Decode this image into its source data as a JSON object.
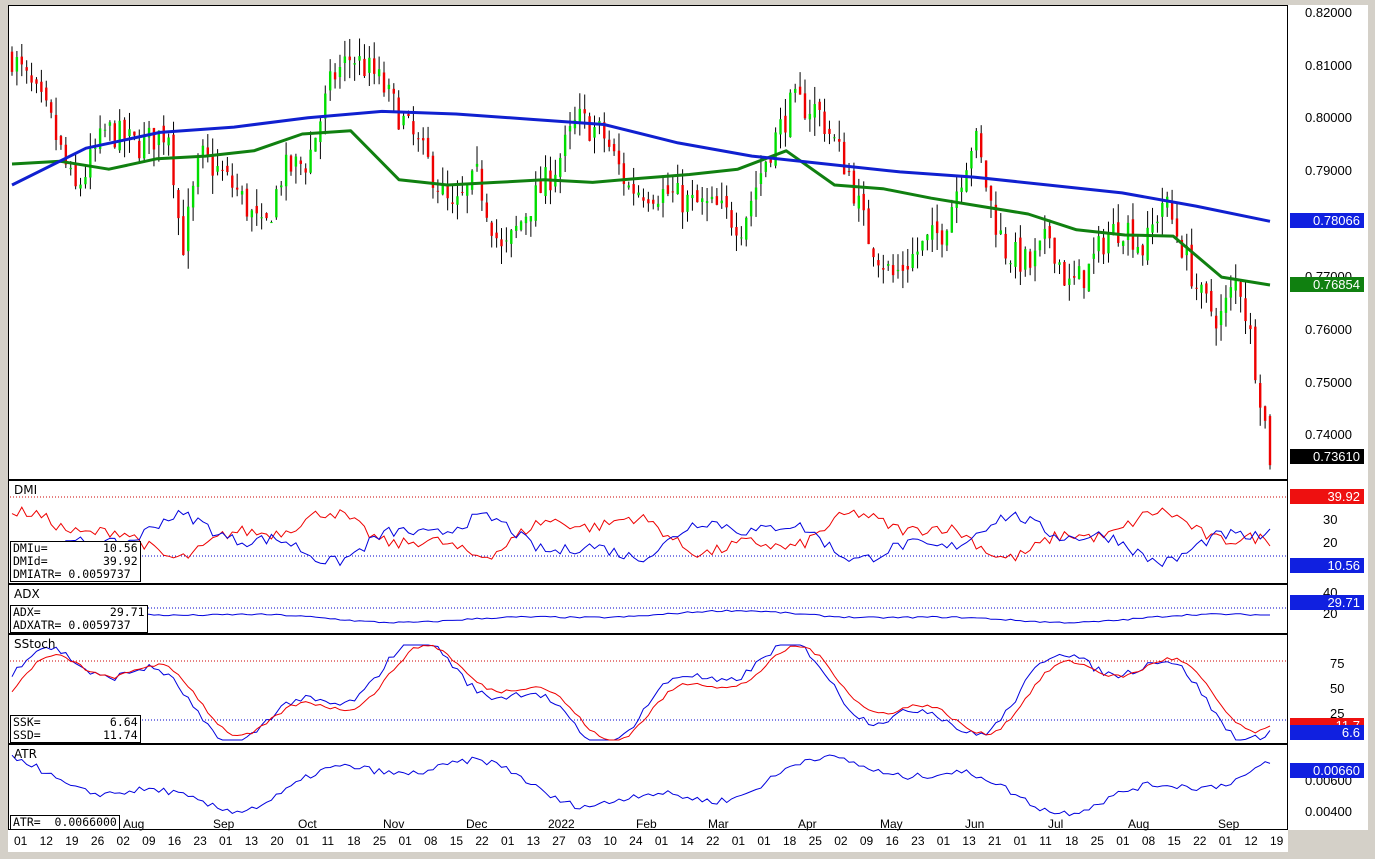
{
  "price_panel": {
    "last_close": "0.73610",
    "ma_green": "0.76854",
    "ma_blue": "0.78066",
    "yticks": [
      "0.82000",
      "0.81000",
      "0.80000",
      "0.79000",
      "0.77000",
      "0.76000",
      "0.75000",
      "0.74000"
    ],
    "colors": {
      "up": "#00dd00",
      "down": "#ee0000",
      "ma_green": "#108010",
      "ma_blue": "#1020d0"
    }
  },
  "dmi_panel": {
    "label": "DMI",
    "info": [
      "DMIu=        10.56",
      "DMId=        39.92",
      "DMIATR= 0.0059737"
    ],
    "badge_red": "39.92",
    "badge_blue": "10.56",
    "yticks": [
      "30",
      "20"
    ]
  },
  "adx_panel": {
    "label": "ADX",
    "info": [
      "ADX=          29.71",
      "ADXATR= 0.0059737"
    ],
    "badge": "29.71",
    "yticks": [
      "40",
      "20"
    ]
  },
  "sstoch_panel": {
    "label": "SStoch",
    "info": [
      "SSK=          6.64",
      "SSD=         11.74"
    ],
    "badge_red": "11.7",
    "badge_blue": "6.6",
    "yticks": [
      "75",
      "50",
      "25"
    ]
  },
  "atr_panel": {
    "label": "ATR",
    "info": [
      "ATR=  0.0066000"
    ],
    "badge": "0.00660",
    "yticks": [
      "0.00600",
      "0.00400"
    ]
  },
  "x_axis": {
    "months": [
      "Aug",
      "Sep",
      "Oct",
      "Nov",
      "Dec",
      "2022",
      "Feb",
      "Mar",
      "Apr",
      "May",
      "Jun",
      "Jul",
      "Aug",
      "Sep"
    ],
    "days": [
      "01",
      "12",
      "19",
      "26",
      "02",
      "09",
      "16",
      "23",
      "01",
      "13",
      "20",
      "01",
      "11",
      "18",
      "25",
      "01",
      "08",
      "15",
      "22",
      "01",
      "13",
      "27",
      "03",
      "10",
      "24",
      "01",
      "14",
      "22",
      "01",
      "01",
      "18",
      "25",
      "02",
      "09",
      "16",
      "23",
      "01",
      "13",
      "21",
      "01",
      "11",
      "18",
      "25",
      "01",
      "08",
      "15",
      "22",
      "01",
      "12",
      "19"
    ]
  },
  "chart_data": {
    "type": "candlestick",
    "title": "",
    "series": [
      {
        "name": "MA green",
        "values": [
          0.7915,
          0.792,
          0.7905,
          0.7925,
          0.793,
          0.794,
          0.7972,
          0.7978,
          0.7885,
          0.7875,
          0.788,
          0.7885,
          0.788,
          0.7888,
          0.7895,
          0.7905,
          0.794,
          0.7875,
          0.7868,
          0.785,
          0.7835,
          0.782,
          0.779,
          0.778,
          0.7778,
          0.77,
          0.7685
        ]
      },
      {
        "name": "MA blue",
        "values": [
          0.7875,
          0.7945,
          0.7975,
          0.7985,
          0.8003,
          0.8015,
          0.801,
          0.8,
          0.799,
          0.7955,
          0.793,
          0.7915,
          0.79,
          0.789,
          0.7875,
          0.786,
          0.7835,
          0.7806
        ]
      }
    ],
    "ylim": [
      0.73,
      0.822
    ],
    "last": 0.7361
  }
}
